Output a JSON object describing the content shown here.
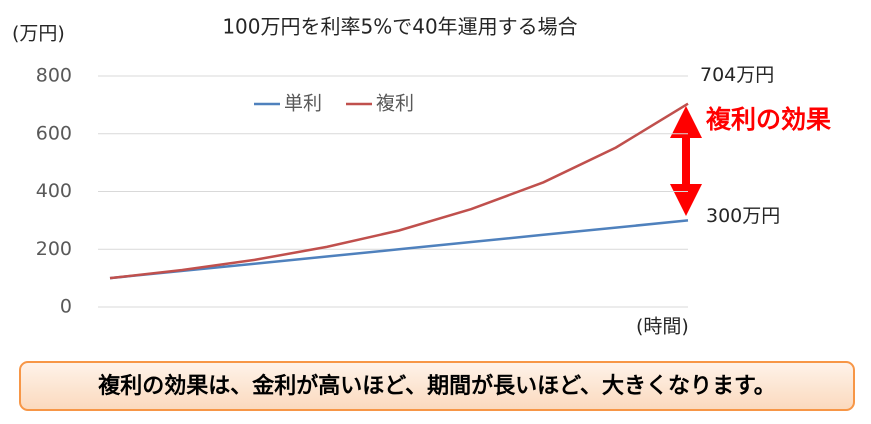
{
  "chart_data": {
    "type": "line",
    "title": "100万円を利率5%で40年運用する場合",
    "y_label": "(万円)",
    "x_label": "(時間)",
    "categories": [
      null,
      null,
      null,
      null,
      null,
      null,
      null,
      null,
      null
    ],
    "series": [
      {
        "name": "単利",
        "color": "#4f81bd",
        "values": [
          100,
          125,
          150,
          175,
          200,
          225,
          250,
          275,
          300
        ]
      },
      {
        "name": "複利",
        "color": "#c0504d",
        "values": [
          100,
          128,
          163,
          208,
          265,
          339,
          432,
          552,
          704
        ]
      }
    ],
    "ylim": [
      0,
      800
    ],
    "yticks": [
      0,
      200,
      400,
      600,
      800
    ],
    "grid": true,
    "legend": "upper left",
    "end_labels": [
      "300万円",
      "704万円"
    ],
    "effect_label": "複利の効果",
    "footer": "複利の効果は、金利が高いほど、期間が長いほど、大きくなります。"
  }
}
